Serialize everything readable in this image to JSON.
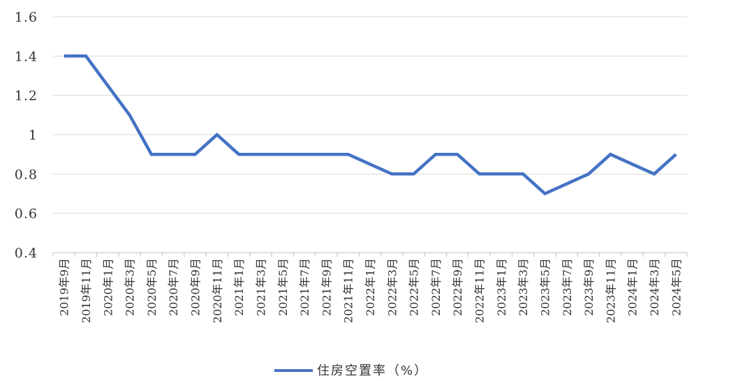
{
  "chart_data": {
    "type": "line",
    "categories": [
      "2019年9月",
      "2019年11月",
      "2020年1月",
      "2020年3月",
      "2020年5月",
      "2020年7月",
      "2020年9月",
      "2020年11月",
      "2021年1月",
      "2021年3月",
      "2021年5月",
      "2021年7月",
      "2021年9月",
      "2021年11月",
      "2022年1月",
      "2022年3月",
      "2022年5月",
      "2022年7月",
      "2022年9月",
      "2022年11月",
      "2023年1月",
      "2023年3月",
      "2023年5月",
      "2023年7月",
      "2023年9月",
      "2023年11月",
      "2024年1月",
      "2024年3月",
      "2024年5月"
    ],
    "series": [
      {
        "name": "住房空置率（%）",
        "color": "#4472C4",
        "values": [
          1.4,
          1.4,
          null,
          1.1,
          0.9,
          0.9,
          0.9,
          1.0,
          0.9,
          0.9,
          0.9,
          0.9,
          0.9,
          0.9,
          null,
          0.8,
          0.8,
          0.9,
          0.9,
          0.8,
          0.8,
          0.8,
          0.7,
          null,
          0.8,
          0.9,
          null,
          0.8,
          0.9
        ]
      }
    ],
    "yticks": [
      "0.4",
      "0.6",
      "0.8",
      "1",
      "1.2",
      "1.4",
      "1.6"
    ],
    "ylim": [
      0.4,
      1.6
    ],
    "grid": true,
    "legend": "bottom"
  }
}
